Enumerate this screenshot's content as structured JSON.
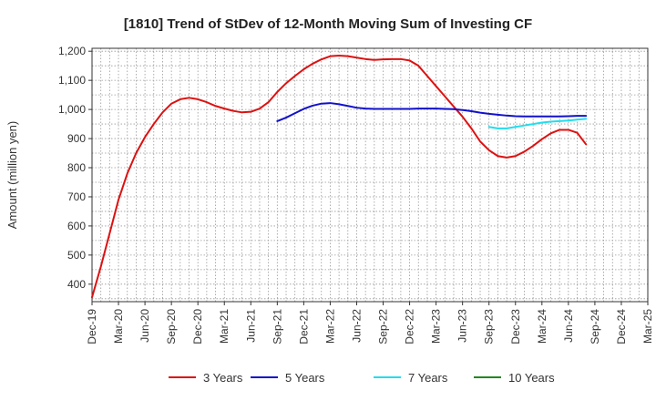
{
  "chart_data": {
    "type": "line",
    "title": "[1810]  Trend of StDev of 12-Month Moving Sum of Investing CF",
    "ylabel": "Amount (million yen)",
    "xlabel": "",
    "ylim": [
      340,
      1210
    ],
    "yticks": [
      "400",
      "500",
      "600",
      "700",
      "800",
      "900",
      "1,000",
      "1,100",
      "1,200"
    ],
    "xticks": [
      "Dec-19",
      "Mar-20",
      "Jun-20",
      "Sep-20",
      "Dec-20",
      "Mar-21",
      "Jun-21",
      "Sep-21",
      "Dec-21",
      "Mar-22",
      "Jun-22",
      "Sep-22",
      "Dec-22",
      "Mar-23",
      "Jun-23",
      "Sep-23",
      "Dec-23",
      "Mar-24",
      "Jun-24",
      "Sep-24",
      "Dec-24",
      "Mar-25"
    ],
    "grid": true,
    "legend_position": "bottom",
    "series": [
      {
        "name": "3 Years",
        "color": "#dd1111",
        "points": [
          [
            "Dec-19",
            355
          ],
          [
            "Jan-20",
            460
          ],
          [
            "Feb-20",
            575
          ],
          [
            "Mar-20",
            690
          ],
          [
            "Apr-20",
            780
          ],
          [
            "May-20",
            850
          ],
          [
            "Jun-20",
            905
          ],
          [
            "Jul-20",
            950
          ],
          [
            "Aug-20",
            990
          ],
          [
            "Sep-20",
            1020
          ],
          [
            "Oct-20",
            1035
          ],
          [
            "Nov-20",
            1040
          ],
          [
            "Dec-20",
            1035
          ],
          [
            "Jan-21",
            1025
          ],
          [
            "Feb-21",
            1012
          ],
          [
            "Mar-21",
            1003
          ],
          [
            "Apr-21",
            995
          ],
          [
            "May-21",
            990
          ],
          [
            "Jun-21",
            992
          ],
          [
            "Jul-21",
            1003
          ],
          [
            "Aug-21",
            1025
          ],
          [
            "Sep-21",
            1060
          ],
          [
            "Oct-21",
            1090
          ],
          [
            "Nov-21",
            1115
          ],
          [
            "Dec-21",
            1138
          ],
          [
            "Jan-22",
            1157
          ],
          [
            "Feb-22",
            1172
          ],
          [
            "Mar-22",
            1183
          ],
          [
            "Apr-22",
            1185
          ],
          [
            "May-22",
            1183
          ],
          [
            "Jun-22",
            1178
          ],
          [
            "Jul-22",
            1173
          ],
          [
            "Aug-22",
            1170
          ],
          [
            "Sep-22",
            1172
          ],
          [
            "Oct-22",
            1173
          ],
          [
            "Nov-22",
            1173
          ],
          [
            "Dec-22",
            1168
          ],
          [
            "Jan-23",
            1150
          ],
          [
            "Feb-23",
            1115
          ],
          [
            "Mar-23",
            1080
          ],
          [
            "Apr-23",
            1045
          ],
          [
            "May-23",
            1010
          ],
          [
            "Jun-23",
            975
          ],
          [
            "Jul-23",
            935
          ],
          [
            "Aug-23",
            890
          ],
          [
            "Sep-23",
            860
          ],
          [
            "Oct-23",
            840
          ],
          [
            "Nov-23",
            835
          ],
          [
            "Dec-23",
            840
          ],
          [
            "Jan-24",
            855
          ],
          [
            "Feb-24",
            875
          ],
          [
            "Mar-24",
            898
          ],
          [
            "Apr-24",
            918
          ],
          [
            "May-24",
            930
          ],
          [
            "Jun-24",
            930
          ],
          [
            "Jul-24",
            920
          ],
          [
            "Aug-24",
            880
          ]
        ]
      },
      {
        "name": "5 Years",
        "color": "#1111cc",
        "points": [
          [
            "Sep-21",
            960
          ],
          [
            "Oct-21",
            972
          ],
          [
            "Nov-21",
            987
          ],
          [
            "Dec-21",
            1002
          ],
          [
            "Jan-22",
            1013
          ],
          [
            "Feb-22",
            1020
          ],
          [
            "Mar-22",
            1022
          ],
          [
            "Apr-22",
            1018
          ],
          [
            "May-22",
            1012
          ],
          [
            "Jun-22",
            1006
          ],
          [
            "Jul-22",
            1003
          ],
          [
            "Aug-22",
            1002
          ],
          [
            "Sep-22",
            1002
          ],
          [
            "Oct-22",
            1002
          ],
          [
            "Nov-22",
            1002
          ],
          [
            "Dec-22",
            1002
          ],
          [
            "Jan-23",
            1003
          ],
          [
            "Feb-23",
            1003
          ],
          [
            "Mar-23",
            1003
          ],
          [
            "Apr-23",
            1002
          ],
          [
            "May-23",
            1001
          ],
          [
            "Jun-23",
            998
          ],
          [
            "Jul-23",
            994
          ],
          [
            "Aug-23",
            989
          ],
          [
            "Sep-23",
            985
          ],
          [
            "Oct-23",
            982
          ],
          [
            "Nov-23",
            979
          ],
          [
            "Dec-23",
            977
          ],
          [
            "Jan-24",
            976
          ],
          [
            "Feb-24",
            976
          ],
          [
            "Mar-24",
            976
          ],
          [
            "Apr-24",
            976
          ],
          [
            "May-24",
            976
          ],
          [
            "Jun-24",
            977
          ],
          [
            "Jul-24",
            978
          ],
          [
            "Aug-24",
            978
          ]
        ]
      },
      {
        "name": "7 Years",
        "color": "#22ddee",
        "points": [
          [
            "Sep-23",
            940
          ],
          [
            "Oct-23",
            935
          ],
          [
            "Nov-23",
            935
          ],
          [
            "Dec-23",
            940
          ],
          [
            "Jan-24",
            945
          ],
          [
            "Feb-24",
            950
          ],
          [
            "Mar-24",
            955
          ],
          [
            "Apr-24",
            958
          ],
          [
            "May-24",
            960
          ],
          [
            "Jun-24",
            962
          ],
          [
            "Jul-24",
            965
          ],
          [
            "Aug-24",
            968
          ]
        ]
      },
      {
        "name": "10 Years",
        "color": "#228822",
        "points": []
      }
    ]
  }
}
